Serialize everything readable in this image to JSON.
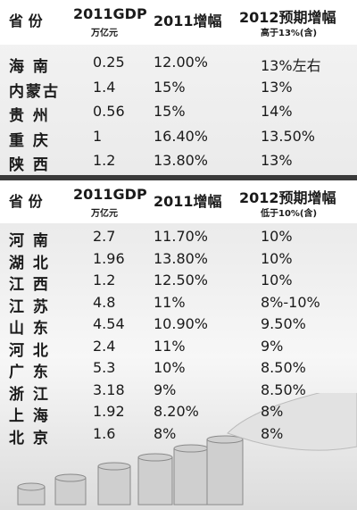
{
  "tables": [
    {
      "header": {
        "province": "省 份",
        "gdp": "2011GDP",
        "gdp_unit": "万亿元",
        "growth_2011": "2011增幅",
        "growth_2012": "2012预期增幅",
        "growth_2012_note": "高于13%(含)"
      },
      "rows": [
        [
          "海 南",
          "0.25",
          "12.00%",
          "13%左右"
        ],
        [
          "内蒙古",
          "1.4",
          "15%",
          "13%"
        ],
        [
          "贵 州",
          "0.56",
          "15%",
          "14%"
        ],
        [
          "重 庆",
          "1",
          "16.40%",
          "13.50%"
        ],
        [
          "陕 西",
          "1.2",
          "13.80%",
          "13%"
        ]
      ]
    },
    {
      "header": {
        "province": "省 份",
        "gdp": "2011GDP",
        "gdp_unit": "万亿元",
        "growth_2011": "2011增幅",
        "growth_2012": "2012预期增幅",
        "growth_2012_note": "低于10%(含)"
      },
      "rows": [
        [
          "河 南",
          "2.7",
          "11.70%",
          "10%"
        ],
        [
          "湖 北",
          "1.96",
          "13.80%",
          "10%"
        ],
        [
          "江 西",
          "1.2",
          "12.50%",
          "10%"
        ],
        [
          "江 苏",
          "4.8",
          "11%",
          "8%-10%"
        ],
        [
          "山 东",
          "4.54",
          "10.90%",
          "9.50%"
        ],
        [
          "河 北",
          "2.4",
          "11%",
          "9%"
        ],
        [
          "广 东",
          "5.3",
          "10%",
          "8.50%"
        ],
        [
          "浙 江",
          "3.18",
          "9%",
          "8.50%"
        ],
        [
          "上 海",
          "1.92",
          "8.20%",
          "8%"
        ],
        [
          "北 京",
          "1.6",
          "8%",
          "8%"
        ]
      ]
    }
  ]
}
